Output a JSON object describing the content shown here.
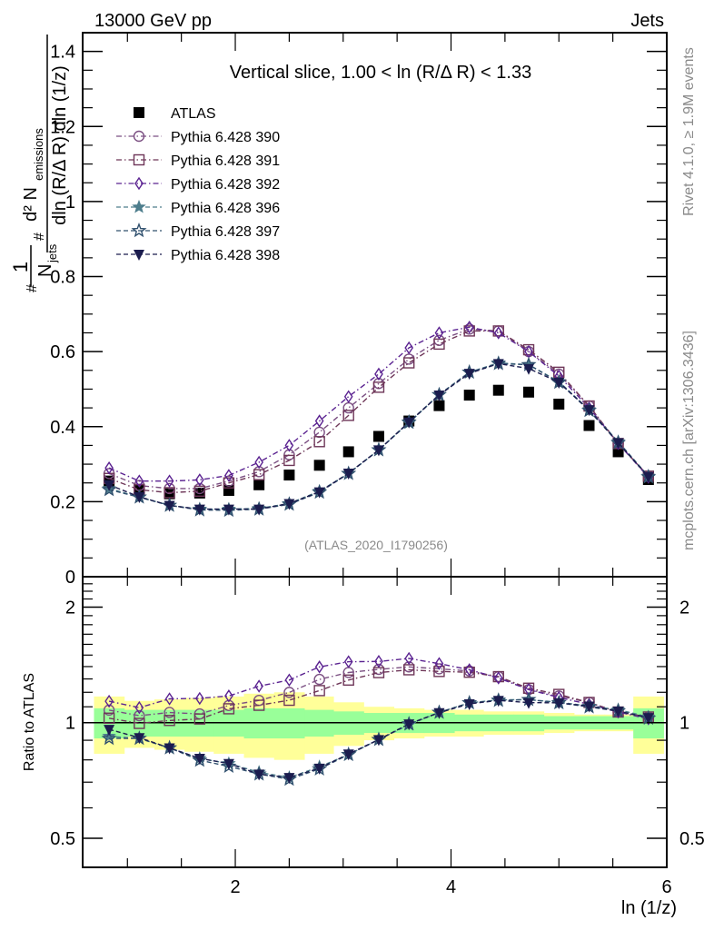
{
  "header": {
    "left": "13000 GeV pp",
    "right": "Jets"
  },
  "side_labels": {
    "rivet": "Rivet 4.1.0, ≥ 1.9M events",
    "mcplots": "mcplots.cern.ch [arXiv:1306.3436]"
  },
  "analysis_tag": "(ATLAS_2020_I1790256)",
  "chart_data": [
    {
      "type": "scatter",
      "panel": "main",
      "title": "Vertical slice, 1.00 < ln (R/Δ R) < 1.33",
      "ylabel": "1/N_jets d²N_emissions / dln(R/ΔR) dln(1/z)",
      "ylabel_parts": {
        "one": "1",
        "njets": "N",
        "njets_sub": "jets",
        "hash1": "#",
        "hash2": "#",
        "num": "d² N",
        "num_sub": "emissions",
        "den": "dln (R/Δ R) dln (1/z)"
      },
      "xlabel": "",
      "xlim": [
        0.585,
        6.0
      ],
      "ylim": [
        0,
        1.45
      ],
      "yticks": [
        0,
        0.2,
        0.4,
        0.6,
        0.8,
        1,
        1.2,
        1.4
      ],
      "ytick_labels": [
        "0",
        "0.2",
        "0.4",
        "0.6",
        "0.8",
        "1",
        "1.2",
        "1.4"
      ],
      "legend_position": "top-left",
      "x": [
        0.83,
        1.11,
        1.39,
        1.67,
        1.94,
        2.22,
        2.5,
        2.78,
        3.05,
        3.33,
        3.61,
        3.89,
        4.17,
        4.44,
        4.72,
        5.0,
        5.28,
        5.55,
        5.83
      ],
      "bin_edges": [
        0.69,
        0.97,
        1.25,
        1.53,
        1.8,
        2.08,
        2.36,
        2.64,
        2.91,
        3.19,
        3.47,
        3.75,
        4.03,
        4.3,
        4.58,
        4.86,
        5.14,
        5.42,
        5.69,
        5.97
      ],
      "series": [
        {
          "name": "ATLAS",
          "marker": "filled-square",
          "color": "#000000",
          "line": "none",
          "values": [
            0.255,
            0.233,
            0.221,
            0.223,
            0.23,
            0.245,
            0.271,
            0.297,
            0.333,
            0.374,
            0.415,
            0.456,
            0.484,
            0.497,
            0.492,
            0.46,
            0.403,
            0.333,
            0.259
          ],
          "rel_unc_total": [
            0.17,
            0.14,
            0.15,
            0.16,
            0.17,
            0.19,
            0.2,
            0.17,
            0.13,
            0.1,
            0.09,
            0.08,
            0.08,
            0.07,
            0.07,
            0.06,
            0.05,
            0.05,
            0.17
          ],
          "rel_unc_stat": [
            0.09,
            0.08,
            0.08,
            0.08,
            0.08,
            0.09,
            0.09,
            0.08,
            0.07,
            0.06,
            0.06,
            0.06,
            0.05,
            0.05,
            0.05,
            0.04,
            0.04,
            0.04,
            0.09
          ]
        },
        {
          "name": "Pythia 6.428 390",
          "marker": "open-circle",
          "color": "#7b4f82",
          "line": "dash-dot",
          "values": [
            0.275,
            0.243,
            0.235,
            0.235,
            0.255,
            0.28,
            0.325,
            0.385,
            0.45,
            0.515,
            0.58,
            0.63,
            0.66,
            0.655,
            0.6,
            0.54,
            0.455,
            0.355,
            0.268
          ]
        },
        {
          "name": "Pythia 6.428 391",
          "marker": "open-square",
          "color": "#6e3658",
          "line": "dash-dot",
          "values": [
            0.262,
            0.232,
            0.224,
            0.228,
            0.25,
            0.272,
            0.31,
            0.36,
            0.43,
            0.505,
            0.57,
            0.62,
            0.655,
            0.655,
            0.605,
            0.545,
            0.455,
            0.355,
            0.268
          ]
        },
        {
          "name": "Pythia 6.428 392",
          "marker": "open-diamond",
          "color": "#5b2391",
          "line": "dash-dot",
          "values": [
            0.29,
            0.255,
            0.255,
            0.258,
            0.27,
            0.305,
            0.35,
            0.415,
            0.48,
            0.54,
            0.61,
            0.65,
            0.665,
            0.65,
            0.6,
            0.535,
            0.45,
            0.355,
            0.265
          ]
        },
        {
          "name": "Pythia 6.428 396",
          "marker": "filled-star",
          "color": "#4d7d8c",
          "line": "dashed",
          "values": [
            0.235,
            0.212,
            0.19,
            0.18,
            0.18,
            0.182,
            0.195,
            0.228,
            0.275,
            0.338,
            0.41,
            0.485,
            0.545,
            0.57,
            0.565,
            0.52,
            0.445,
            0.36,
            0.268
          ]
        },
        {
          "name": "Pythia 6.428 397",
          "marker": "open-star",
          "color": "#30506e",
          "line": "dashed",
          "values": [
            0.232,
            0.212,
            0.19,
            0.178,
            0.177,
            0.18,
            0.193,
            0.225,
            0.275,
            0.338,
            0.412,
            0.485,
            0.545,
            0.568,
            0.565,
            0.518,
            0.443,
            0.357,
            0.266
          ]
        },
        {
          "name": "Pythia 6.428 398",
          "marker": "filled-down-triangle",
          "color": "#1b1c4e",
          "line": "dashed",
          "values": [
            0.245,
            0.213,
            0.19,
            0.18,
            0.18,
            0.18,
            0.195,
            0.226,
            0.276,
            0.338,
            0.412,
            0.484,
            0.542,
            0.568,
            0.555,
            0.518,
            0.445,
            0.357,
            0.267
          ]
        }
      ]
    },
    {
      "type": "scatter",
      "panel": "ratio",
      "ylabel": "Ratio to ATLAS",
      "xlabel": "ln (1/z)",
      "yscale": "log",
      "ylim": [
        0.42,
        2.4
      ],
      "yticks": [
        0.5,
        1,
        2
      ],
      "ytick_labels": [
        "0.5",
        "1",
        "2"
      ],
      "xticks": [
        2,
        4,
        6
      ],
      "xtick_labels": [
        "2",
        "4",
        "6"
      ],
      "reference_line": 1,
      "band_colors": {
        "total": "#ffff99",
        "stat": "#99ff99"
      },
      "note": "ratio = Pythia series / ATLAS values"
    }
  ]
}
